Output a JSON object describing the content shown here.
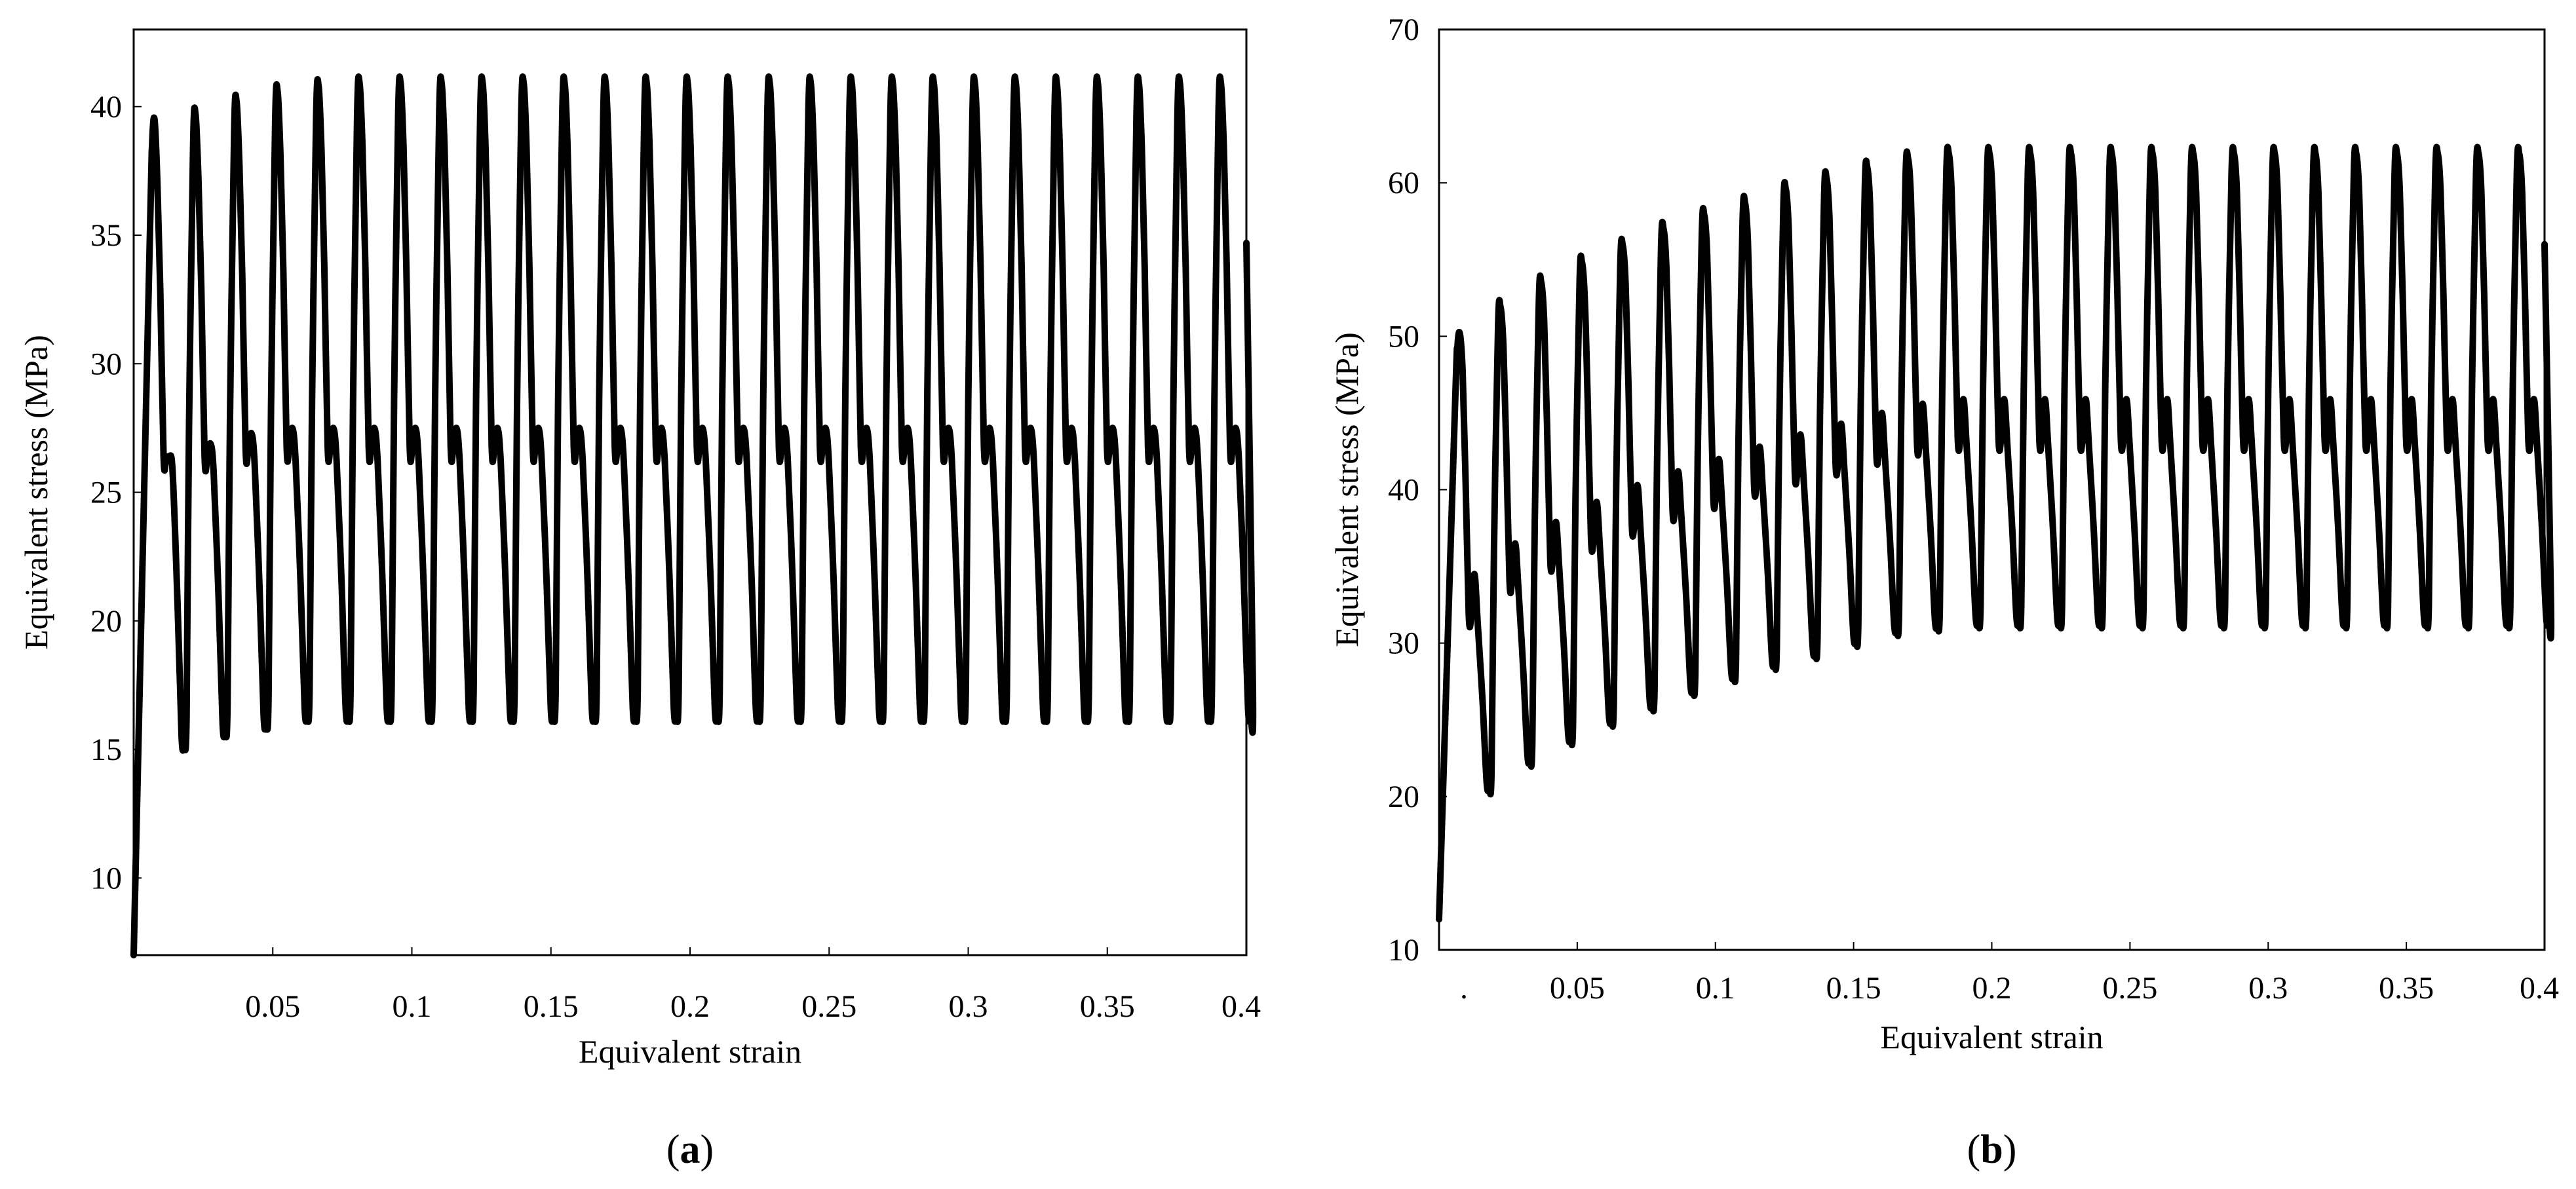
{
  "chart_data": [
    {
      "type": "line",
      "panel_label": "a",
      "title": "",
      "xlabel": "Equivalent strain",
      "ylabel": "Equivalent stress (MPa)",
      "xlim": [
        0,
        0.4
      ],
      "ylim": [
        7,
        43
      ],
      "xticks": [
        0.05,
        0.1,
        0.15,
        0.2,
        0.25,
        0.3,
        0.35,
        0.4
      ],
      "xtick_labels": [
        "0.05",
        "0.1",
        "0.15",
        "0.2",
        "0.25",
        "0.3",
        "0.35",
        "0.4"
      ],
      "yticks": [
        10,
        15,
        20,
        25,
        30,
        35,
        40
      ],
      "ytick_labels": [
        "10",
        "15",
        "20",
        "25",
        "30",
        "35",
        "40"
      ],
      "grid": false,
      "series": [
        {
          "name": "Equivalent stress",
          "color": "#000000",
          "cycles": 27,
          "first_peak_strain": 0.0075,
          "start_stress": 7,
          "peak_max": [
            39.5,
            39.7,
            40.2,
            40.6,
            40.8,
            40.9
          ],
          "peak_final": 40.9,
          "valley_min": [
            15.2,
            15.7,
            16.0,
            16.3
          ],
          "valley_final": 16.3,
          "shoulder_low": [
            26.2,
            26.2,
            26.5,
            26.6
          ],
          "shoulder_low_final": 26.6,
          "shoulder_high": [
            26.4,
            26.9,
            27.3,
            27.5
          ],
          "shoulder_high_final": 27.5,
          "end_stress": 34.7
        }
      ]
    },
    {
      "type": "line",
      "panel_label": "b",
      "title": "",
      "xlabel": "Equivalent strain",
      "ylabel": "Equivalent stress (MPa)",
      "xlim": [
        0,
        0.4
      ],
      "ylim": [
        10,
        70
      ],
      "xticks": [
        0,
        0.05,
        0.1,
        0.15,
        0.2,
        0.25,
        0.3,
        0.35,
        0.4
      ],
      "xtick_labels": [
        ".",
        "0.05",
        "0.1",
        "0.15",
        "0.2",
        "0.25",
        "0.3",
        "0.35",
        "0.4"
      ],
      "yticks": [
        10,
        20,
        30,
        40,
        50,
        60,
        70
      ],
      "ytick_labels": [
        "10",
        "20",
        "30",
        "40",
        "50",
        "60",
        "70"
      ],
      "grid": false,
      "series": [
        {
          "name": "Equivalent stress",
          "color": "#000000",
          "cycles": 27,
          "first_peak_strain": 0.0075,
          "start_stress": 12,
          "peak_max": [
            50.2,
            51.9,
            53.5,
            54.8,
            55.9,
            57.0,
            57.9,
            58.7,
            59.6,
            60.3,
            61.0,
            61.6,
            61.9
          ],
          "peak_final": 61.9,
          "valley_min": [
            20.6,
            22.4,
            23.8,
            25.0,
            26.0,
            27.0,
            27.9,
            28.7,
            29.4,
            30.2,
            30.9,
            31.2,
            31.4
          ],
          "valley_final": 31.4,
          "shoulder_low": [
            31.7,
            33.9,
            35.3,
            36.6,
            37.6,
            38.6,
            39.4,
            40.2,
            41.0,
            41.6,
            42.3,
            42.9,
            43.2
          ],
          "shoulder_low_final": 43.2,
          "shoulder_high": [
            34.5,
            36.5,
            37.9,
            39.2,
            40.3,
            41.2,
            42.0,
            42.8,
            43.6,
            44.3,
            45.0,
            45.6,
            45.9
          ],
          "shoulder_high_final": 45.9,
          "end_stress": 56.0
        }
      ]
    }
  ]
}
